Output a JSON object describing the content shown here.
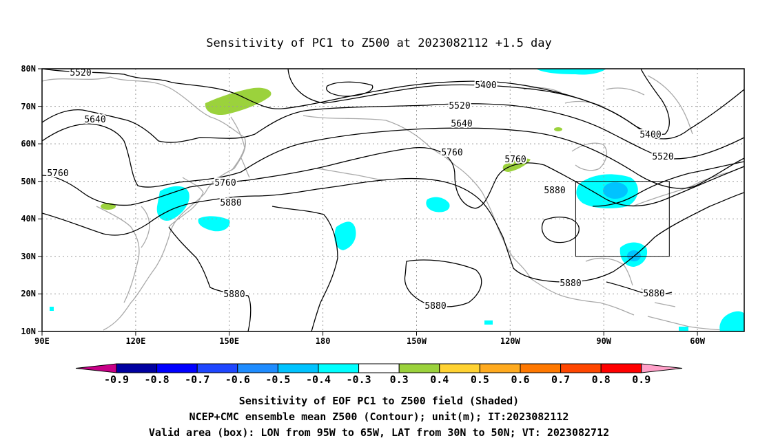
{
  "title": "Sensitivity of PC1 to Z500 at 2023082112 +1.5 day",
  "map": {
    "lat_labels": [
      "80N",
      "70N",
      "60N",
      "50N",
      "40N",
      "30N",
      "20N",
      "10N"
    ],
    "lon_labels": [
      "90E",
      "120E",
      "150E",
      "180",
      "150W",
      "120W",
      "90W",
      "60W"
    ],
    "contour_labels": [
      {
        "text": "5520",
        "id": "c5520-west"
      },
      {
        "text": "5400",
        "id": "c5400-center"
      },
      {
        "text": "5520",
        "id": "c5520-center"
      },
      {
        "text": "5640",
        "id": "c5640-west"
      },
      {
        "text": "5640",
        "id": "c5640-center"
      },
      {
        "text": "5400",
        "id": "c5400-east"
      },
      {
        "text": "5520",
        "id": "c5520-east"
      },
      {
        "text": "5760",
        "id": "c5760-far-west"
      },
      {
        "text": "5760",
        "id": "c5760-west"
      },
      {
        "text": "5760",
        "id": "c5760-center"
      },
      {
        "text": "5760",
        "id": "c5760-east"
      },
      {
        "text": "5880",
        "id": "c5880-west"
      },
      {
        "text": "5880",
        "id": "c5880-east"
      },
      {
        "text": "5880",
        "id": "c5880-south-west"
      },
      {
        "text": "5880",
        "id": "c5880-south-center"
      },
      {
        "text": "5880",
        "id": "c5880-south-east"
      },
      {
        "text": "5880",
        "id": "c5880-far-east"
      }
    ],
    "valid_box": {
      "lon_from": "95W",
      "lon_to": "65W",
      "lat_from": "30N",
      "lat_to": "50N"
    }
  },
  "colorbar": {
    "labels": [
      "-0.9",
      "-0.8",
      "-0.7",
      "-0.6",
      "-0.5",
      "-0.4",
      "-0.3",
      "0.3",
      "0.4",
      "0.5",
      "0.6",
      "0.7",
      "0.8",
      "0.9"
    ],
    "colors": {
      "low_arrow": "#c80087",
      "bins": [
        "#0000a0",
        "#0000ff",
        "#1e46ff",
        "#1e8cff",
        "#00c3ff",
        "#00ffff",
        "#ffffff",
        "#9bd23c",
        "#ffd232",
        "#ffaa1e",
        "#ff7800",
        "#ff4600",
        "#ff0000"
      ],
      "high_arrow": "#ffa0c8"
    }
  },
  "caption": {
    "line1": "Sensitivity of EOF PC1 to Z500 field (Shaded)",
    "line2": "NCEP+CMC ensemble mean Z500 (Contour); unit(m); IT:2023082112",
    "line3": "Valid area (box): LON from 95W to 65W, LAT from 30N to 50N; VT: 2023082712"
  }
}
